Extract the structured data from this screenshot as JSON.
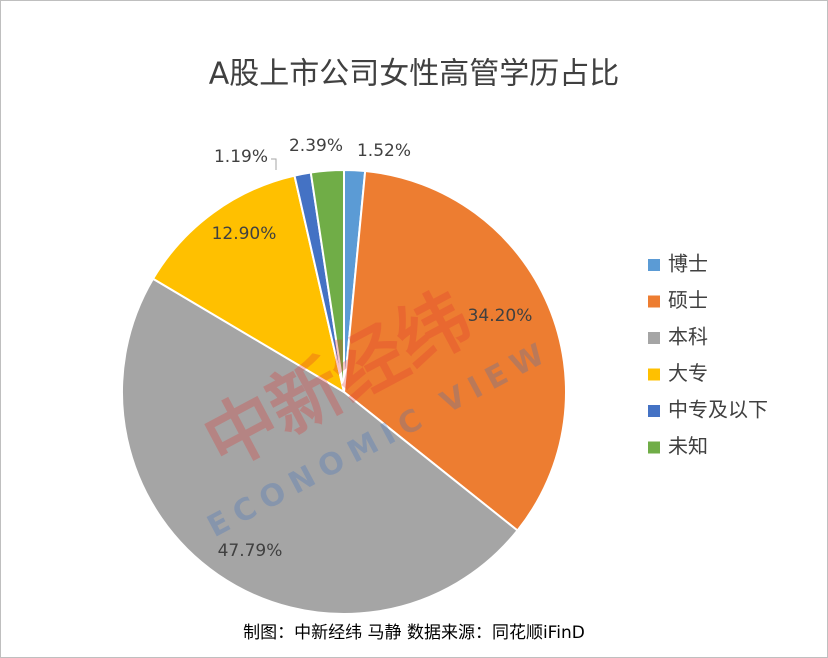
{
  "chart_data": {
    "type": "pie",
    "title": "A股上市公司女性高管学历占比",
    "categories": [
      "博士",
      "硕士",
      "本科",
      "大专",
      "中专及以下",
      "未知"
    ],
    "values": [
      1.52,
      34.2,
      47.79,
      12.9,
      1.19,
      2.39
    ],
    "value_labels": [
      "1.52%",
      "34.20%",
      "47.79%",
      "12.90%",
      "1.19%",
      "2.39%"
    ],
    "colors": [
      "#5b9bd5",
      "#ed7d31",
      "#a5a5a5",
      "#ffc000",
      "#4472c4",
      "#70ad47"
    ],
    "legend": "right",
    "watermark": [
      "中新经纬",
      "ECONOMIC VIEW"
    ],
    "source": "制图：中新经纬 马静  数据来源：同花顺iFinD"
  }
}
